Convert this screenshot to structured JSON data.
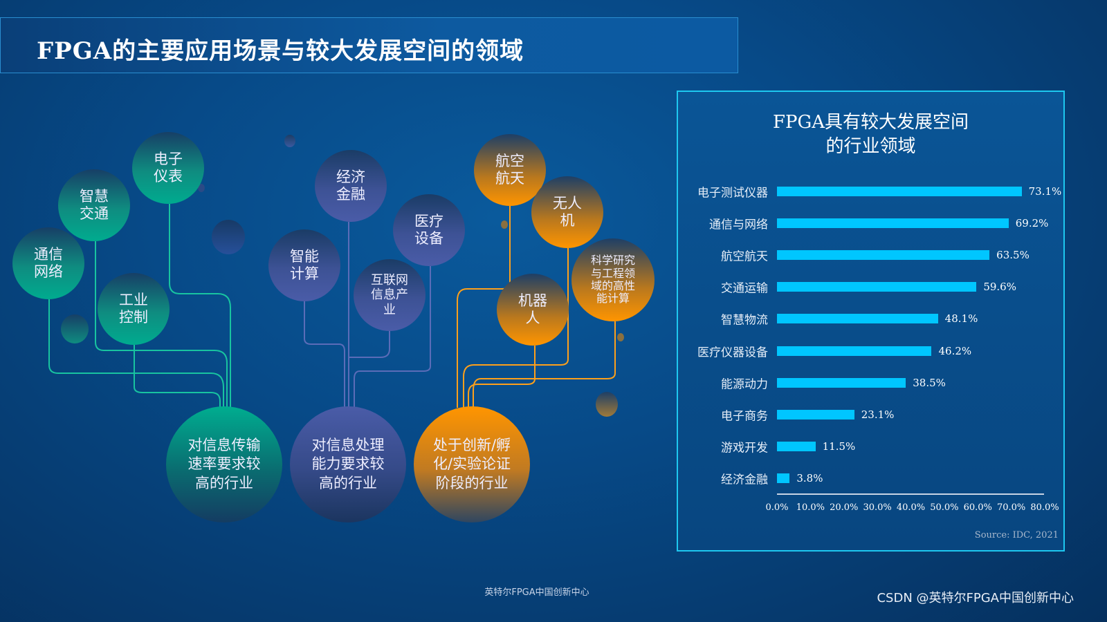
{
  "title": "FPGA的主要应用场景与较大发展空间的领域",
  "groups": [
    {
      "label": "对信息传输\n速率要求较\n高的行业",
      "color": "#00ab8f",
      "items": [
        "电子\n仪表",
        "智慧\n交通",
        "通信\n网络",
        "工业\n控制"
      ]
    },
    {
      "label": "对信息处理\n能力要求较\n高的行业",
      "color": "#4a5ca8",
      "items": [
        "经济\n金融",
        "医疗\n设备",
        "智能\n计算",
        "互联网\n信息产\n业"
      ]
    },
    {
      "label": "处于创新/孵\n化/实验论证\n阶段的行业",
      "color": "#ff9500",
      "items": [
        "航空\n航天",
        "无人\n机",
        "科学研究\n与工程领\n域的高性\n能计算",
        "机器\n人"
      ]
    }
  ],
  "chart_data": {
    "type": "bar",
    "orientation": "horizontal",
    "title": "FPGA具有较大发展空间\n的行业领域",
    "categories": [
      "电子测试仪器",
      "通信与网络",
      "航空航天",
      "交通运输",
      "智慧物流",
      "医疗仪器设备",
      "能源动力",
      "电子商务",
      "游戏开发",
      "经济金融"
    ],
    "values": [
      73.1,
      69.2,
      63.5,
      59.6,
      48.1,
      46.2,
      38.5,
      23.1,
      11.5,
      3.8
    ],
    "value_labels": [
      "73.1%",
      "69.2%",
      "63.5%",
      "59.6%",
      "48.1%",
      "46.2%",
      "38.5%",
      "23.1%",
      "11.5%",
      "3.8%"
    ],
    "xlim": [
      0,
      80
    ],
    "xticks": [
      "0.0%",
      "10.0%",
      "20.0%",
      "30.0%",
      "40.0%",
      "50.0%",
      "60.0%",
      "70.0%",
      "80.0%"
    ],
    "bar_color": "#00c6ff",
    "grid": false,
    "source": "Source: IDC, 2021"
  },
  "footer": "英特尔FPGA中国创新中心",
  "watermark": "CSDN @英特尔FPGA中国创新中心"
}
